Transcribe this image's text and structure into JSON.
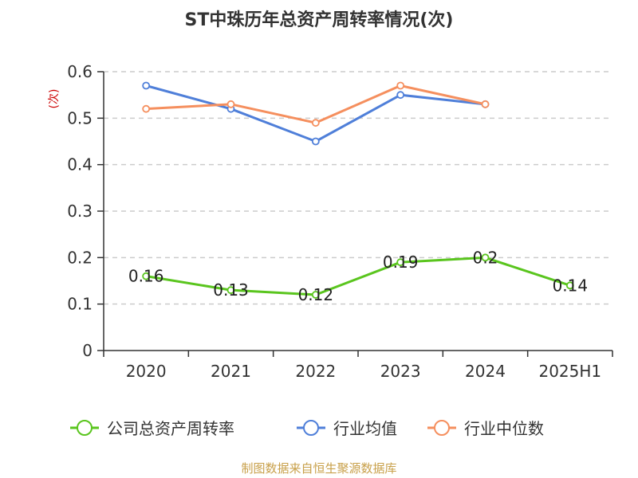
{
  "chart_data": {
    "type": "line",
    "title": "ST中珠历年总资产周转率情况(次)",
    "ylabel": "(次)",
    "xlabel": "",
    "categories": [
      "2020",
      "2021",
      "2022",
      "2023",
      "2024",
      "2025H1"
    ],
    "yticks": [
      "0",
      "0.1",
      "0.2",
      "0.3",
      "0.4",
      "0.5",
      "0.6"
    ],
    "ylim": [
      0,
      0.6
    ],
    "grid": true,
    "legend_position": "bottom",
    "series": [
      {
        "name": "公司总资产周转率",
        "color": "#5ac51e",
        "values": [
          0.16,
          0.13,
          0.12,
          0.19,
          0.2,
          0.14
        ],
        "labels": [
          "0.16",
          "0.13",
          "0.12",
          "0.19",
          "0.2",
          "0.14"
        ]
      },
      {
        "name": "行业均值",
        "color": "#4f7fd9",
        "values": [
          0.57,
          0.52,
          0.45,
          0.55,
          0.53,
          null
        ]
      },
      {
        "name": "行业中位数",
        "color": "#f58f5e",
        "values": [
          0.52,
          0.53,
          0.49,
          0.57,
          0.53,
          null
        ]
      }
    ],
    "source": "制图数据来自恒生聚源数据库"
  }
}
